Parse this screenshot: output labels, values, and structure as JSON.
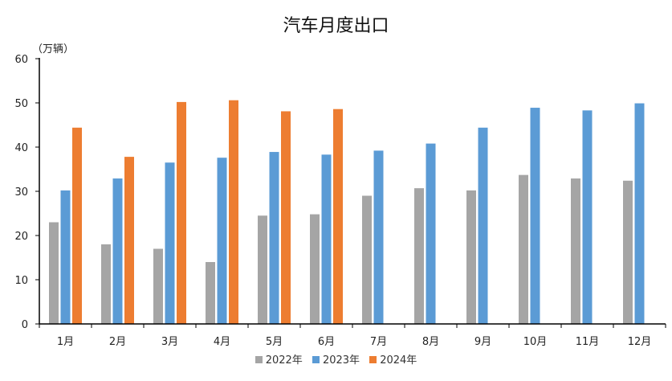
{
  "chart_data": {
    "type": "bar",
    "title": "汽车月度出口",
    "unit_label": "（万辆）",
    "categories": [
      "1月",
      "2月",
      "3月",
      "4月",
      "5月",
      "6月",
      "7月",
      "8月",
      "9月",
      "10月",
      "11月",
      "12月"
    ],
    "ylim": [
      0,
      60
    ],
    "yticks": [
      0,
      10,
      20,
      30,
      40,
      50,
      60
    ],
    "grid": false,
    "legend_position": "bottom",
    "series": [
      {
        "name": "2022年",
        "color": "#A5A5A5",
        "values": [
          23.0,
          18.0,
          17.0,
          14.0,
          24.5,
          24.8,
          29.0,
          30.7,
          30.2,
          33.7,
          32.9,
          32.4
        ]
      },
      {
        "name": "2023年",
        "color": "#5B9BD5",
        "values": [
          30.2,
          32.9,
          36.5,
          37.6,
          38.9,
          38.3,
          39.2,
          40.8,
          44.4,
          48.9,
          48.3,
          49.9
        ]
      },
      {
        "name": "2024年",
        "color": "#ED7D31",
        "values": [
          44.4,
          37.8,
          50.2,
          50.6,
          48.1,
          48.6,
          null,
          null,
          null,
          null,
          null,
          null
        ]
      }
    ]
  }
}
